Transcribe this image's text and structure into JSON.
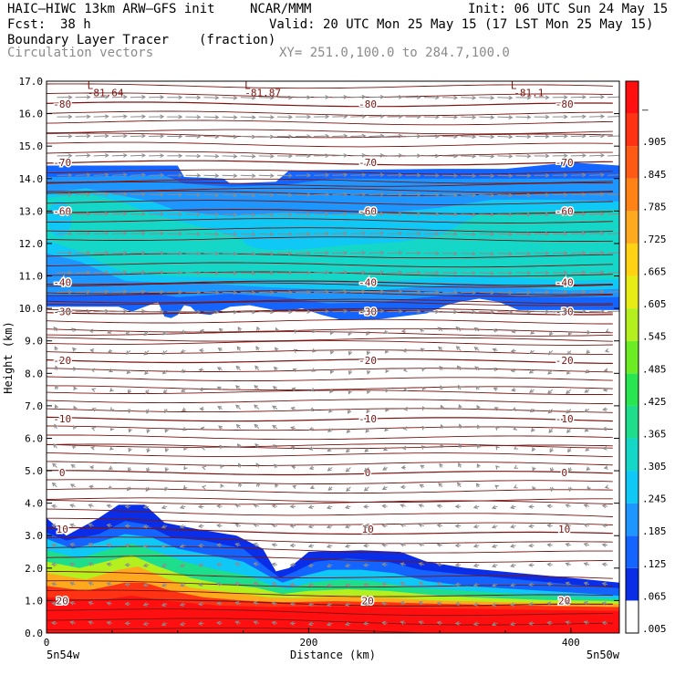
{
  "header": {
    "model": "HAIC–HIWC 13km ARW–GFS init",
    "org": "NCAR/MMM",
    "init": "Init: 06 UTC Sun 24 May 15",
    "fcst_label": "Fcst:",
    "fcst_value": "38 h",
    "valid": "Valid: 20 UTC Mon 25 May 15 (17 LST Mon 25 May 15)",
    "field": "Boundary Layer Tracer",
    "unit": "(fraction)",
    "vectors": "Circulation vectors",
    "xy": "XY= 251.0,100.0 to 284.7,100.0"
  },
  "colors": {
    "contour": "#7a1410",
    "vector": "#8c8c8c",
    "axis": "#000000"
  },
  "chart_data": {
    "type": "heatmap",
    "title": "Boundary Layer Tracer",
    "unit": "(fraction)",
    "xlabel": "Distance (km)",
    "ylabel": "Height (km)",
    "xlim": [
      0,
      437
    ],
    "ylim": [
      0,
      17
    ],
    "x_ticks": [
      0,
      200,
      400
    ],
    "y_ticks": [
      "0.0",
      "1.0",
      "2.0",
      "3.0",
      "4.0",
      "5.0",
      "6.0",
      "7.0",
      "8.0",
      "9.0",
      "10.0",
      "11.0",
      "12.0",
      "13.0",
      "14.0",
      "15.0",
      "16.0",
      "17.0"
    ],
    "x_end_labels": [
      "5n54w",
      "5n50w"
    ],
    "colorbar": {
      "labels": [
        ".005",
        ".065",
        ".125",
        ".185",
        ".245",
        ".305",
        ".365",
        ".425",
        ".485",
        ".545",
        ".605",
        ".665",
        ".725",
        ".785",
        ".845",
        ".905",
        "–"
      ],
      "colors": [
        "#ffffff",
        "#0a2ee8",
        "#1464ff",
        "#1e96ff",
        "#0fc8f5",
        "#14d7c8",
        "#1ede8c",
        "#28e650",
        "#6cec22",
        "#b4f01e",
        "#e6ec14",
        "#ffd214",
        "#ffaa1e",
        "#ff8214",
        "#ff5a14",
        "#ff3214",
        "#ff0f0f"
      ]
    },
    "temperature_contours": [
      {
        "temp": 20,
        "label": "20",
        "z": 1.0
      },
      {
        "temp": 10,
        "label": "10",
        "z": 3.2
      },
      {
        "temp": 0,
        "label": "0",
        "z": 4.95
      },
      {
        "temp": -10,
        "label": "-10",
        "z": 6.6
      },
      {
        "temp": -20,
        "label": "-20",
        "z": 8.4
      },
      {
        "temp": -30,
        "label": "-30",
        "z": 9.9
      },
      {
        "temp": -40,
        "label": "-40",
        "z": 10.8
      },
      {
        "temp": -60,
        "label": "-60",
        "z": 13.0
      },
      {
        "temp": -70,
        "label": "-70",
        "z": 14.5
      },
      {
        "temp": -80,
        "label": "-80",
        "z": 16.3
      }
    ],
    "minima": [
      {
        "x": 45,
        "z": 16.7,
        "label": "-81.64"
      },
      {
        "x": 165,
        "z": 16.7,
        "label": "-81.87"
      },
      {
        "x": 368,
        "z": 16.7,
        "label": "-81.1"
      }
    ],
    "tracer_layers": [
      {
        "level": 0.005,
        "top": [
          [
            0,
            3.55
          ],
          [
            15,
            3.0
          ],
          [
            40,
            3.55
          ],
          [
            55,
            3.95
          ],
          [
            75,
            3.95
          ],
          [
            90,
            3.4
          ],
          [
            115,
            3.2
          ],
          [
            145,
            3.0
          ],
          [
            165,
            2.6
          ],
          [
            175,
            1.9
          ],
          [
            185,
            2.0
          ],
          [
            200,
            2.5
          ],
          [
            240,
            2.55
          ],
          [
            270,
            2.5
          ],
          [
            290,
            2.2
          ],
          [
            320,
            2.0
          ],
          [
            360,
            1.85
          ],
          [
            400,
            1.7
          ],
          [
            437,
            1.55
          ]
        ]
      },
      {
        "level": 0.065,
        "top": [
          [
            0,
            3.1
          ],
          [
            15,
            2.85
          ],
          [
            40,
            3.05
          ],
          [
            60,
            3.45
          ],
          [
            75,
            3.35
          ],
          [
            95,
            2.95
          ],
          [
            120,
            2.85
          ],
          [
            150,
            2.6
          ],
          [
            168,
            2.0
          ],
          [
            178,
            1.7
          ],
          [
            190,
            1.9
          ],
          [
            205,
            2.2
          ],
          [
            230,
            2.3
          ],
          [
            260,
            2.2
          ],
          [
            285,
            1.95
          ],
          [
            320,
            1.8
          ],
          [
            360,
            1.65
          ],
          [
            400,
            1.5
          ],
          [
            437,
            1.38
          ]
        ]
      },
      {
        "level": 0.185,
        "top": [
          [
            0,
            2.9
          ],
          [
            20,
            2.6
          ],
          [
            40,
            2.8
          ],
          [
            60,
            3.05
          ],
          [
            80,
            2.95
          ],
          [
            100,
            2.6
          ],
          [
            125,
            2.4
          ],
          [
            150,
            2.2
          ],
          [
            170,
            1.75
          ],
          [
            180,
            1.55
          ],
          [
            195,
            1.75
          ],
          [
            215,
            1.95
          ],
          [
            240,
            1.95
          ],
          [
            265,
            1.85
          ],
          [
            290,
            1.6
          ],
          [
            320,
            1.45
          ],
          [
            360,
            1.35
          ],
          [
            400,
            1.25
          ],
          [
            437,
            1.15
          ]
        ]
      },
      {
        "level": 0.305,
        "top": [
          [
            0,
            2.55
          ],
          [
            25,
            2.3
          ],
          [
            45,
            2.55
          ],
          [
            65,
            2.75
          ],
          [
            85,
            2.5
          ],
          [
            105,
            2.2
          ],
          [
            130,
            1.95
          ],
          [
            155,
            1.75
          ],
          [
            172,
            1.45
          ],
          [
            185,
            1.35
          ],
          [
            200,
            1.55
          ],
          [
            225,
            1.65
          ],
          [
            250,
            1.6
          ],
          [
            280,
            1.4
          ],
          [
            320,
            1.3
          ],
          [
            360,
            1.2
          ],
          [
            400,
            1.12
          ],
          [
            437,
            1.05
          ]
        ]
      },
      {
        "level": 0.485,
        "top": [
          [
            0,
            2.2
          ],
          [
            25,
            2.0
          ],
          [
            50,
            2.25
          ],
          [
            65,
            2.4
          ],
          [
            85,
            2.05
          ],
          [
            110,
            1.7
          ],
          [
            135,
            1.5
          ],
          [
            160,
            1.4
          ],
          [
            180,
            1.2
          ],
          [
            200,
            1.3
          ],
          [
            230,
            1.35
          ],
          [
            260,
            1.3
          ],
          [
            300,
            1.15
          ],
          [
            340,
            1.08
          ],
          [
            380,
            1.02
          ],
          [
            437,
            0.98
          ]
        ]
      },
      {
        "level": 0.665,
        "top": [
          [
            0,
            1.85
          ],
          [
            30,
            1.65
          ],
          [
            55,
            1.95
          ],
          [
            70,
            2.05
          ],
          [
            90,
            1.7
          ],
          [
            110,
            1.4
          ],
          [
            140,
            1.25
          ],
          [
            170,
            1.1
          ],
          [
            190,
            1.08
          ],
          [
            220,
            1.12
          ],
          [
            260,
            1.08
          ],
          [
            300,
            1.0
          ],
          [
            350,
            0.95
          ],
          [
            437,
            0.9
          ]
        ]
      },
      {
        "level": 0.845,
        "top": [
          [
            0,
            1.45
          ],
          [
            30,
            1.3
          ],
          [
            60,
            1.55
          ],
          [
            75,
            1.55
          ],
          [
            95,
            1.3
          ],
          [
            120,
            1.1
          ],
          [
            150,
            1.0
          ],
          [
            180,
            0.95
          ],
          [
            220,
            0.98
          ],
          [
            260,
            0.95
          ],
          [
            300,
            0.9
          ],
          [
            360,
            0.85
          ],
          [
            437,
            0.8
          ]
        ]
      },
      {
        "level": 0.905,
        "top": [
          [
            0,
            1.1
          ],
          [
            40,
            1.0
          ],
          [
            65,
            1.15
          ],
          [
            90,
            1.0
          ],
          [
            130,
            0.85
          ],
          [
            170,
            0.8
          ],
          [
            220,
            0.82
          ],
          [
            280,
            0.78
          ],
          [
            360,
            0.72
          ],
          [
            437,
            0.68
          ]
        ]
      }
    ],
    "upper_cloud": {
      "outer": {
        "top": [
          [
            0,
            14.4
          ],
          [
            100,
            14.4
          ],
          [
            105,
            14.05
          ],
          [
            135,
            14.0
          ],
          [
            140,
            13.85
          ],
          [
            175,
            13.9
          ],
          [
            185,
            14.25
          ],
          [
            300,
            14.3
          ],
          [
            350,
            14.3
          ],
          [
            400,
            14.5
          ],
          [
            437,
            14.4
          ]
        ],
        "bottom": [
          [
            0,
            10.05
          ],
          [
            55,
            10.05
          ],
          [
            65,
            9.9
          ],
          [
            75,
            10.05
          ],
          [
            85,
            10.2
          ],
          [
            90,
            9.75
          ],
          [
            95,
            9.7
          ],
          [
            100,
            9.8
          ],
          [
            105,
            10.1
          ],
          [
            110,
            10.05
          ],
          [
            115,
            9.85
          ],
          [
            125,
            9.8
          ],
          [
            140,
            10.05
          ],
          [
            155,
            10.1
          ],
          [
            180,
            9.9
          ],
          [
            195,
            10.0
          ],
          [
            210,
            9.8
          ],
          [
            225,
            9.65
          ],
          [
            250,
            9.65
          ],
          [
            270,
            9.75
          ],
          [
            290,
            9.85
          ],
          [
            305,
            10.1
          ],
          [
            315,
            10.2
          ],
          [
            330,
            10.3
          ],
          [
            345,
            10.2
          ],
          [
            360,
            9.95
          ],
          [
            400,
            9.95
          ],
          [
            437,
            9.95
          ]
        ]
      },
      "mid": {
        "top": [
          [
            0,
            14.05
          ],
          [
            90,
            14.1
          ],
          [
            105,
            13.85
          ],
          [
            140,
            13.75
          ],
          [
            180,
            13.8
          ],
          [
            220,
            14.0
          ],
          [
            437,
            14.0
          ]
        ],
        "bottom": [
          [
            0,
            10.4
          ],
          [
            60,
            10.4
          ],
          [
            75,
            10.5
          ],
          [
            100,
            10.35
          ],
          [
            140,
            10.45
          ],
          [
            180,
            10.35
          ],
          [
            215,
            10.15
          ],
          [
            255,
            10.2
          ],
          [
            290,
            10.35
          ],
          [
            330,
            10.5
          ],
          [
            370,
            10.35
          ],
          [
            437,
            10.35
          ]
        ]
      },
      "inner": {
        "top": [
          [
            0,
            13.55
          ],
          [
            30,
            13.7
          ],
          [
            60,
            13.45
          ],
          [
            80,
            13.3
          ],
          [
            100,
            13.0
          ],
          [
            140,
            12.85
          ],
          [
            180,
            12.95
          ],
          [
            220,
            12.9
          ],
          [
            260,
            12.95
          ],
          [
            300,
            13.1
          ],
          [
            340,
            13.35
          ],
          [
            380,
            13.35
          ],
          [
            437,
            13.3
          ]
        ],
        "bottom": [
          [
            0,
            11.7
          ],
          [
            25,
            11.45
          ],
          [
            45,
            11.1
          ],
          [
            60,
            10.85
          ],
          [
            90,
            10.8
          ],
          [
            130,
            10.75
          ],
          [
            170,
            10.65
          ],
          [
            200,
            10.6
          ],
          [
            240,
            10.5
          ],
          [
            280,
            10.65
          ],
          [
            320,
            10.75
          ],
          [
            360,
            10.65
          ],
          [
            400,
            10.55
          ],
          [
            437,
            10.6
          ]
        ]
      },
      "core": {
        "top": [
          [
            0,
            13.4
          ],
          [
            30,
            13.55
          ],
          [
            60,
            13.25
          ],
          [
            80,
            12.9
          ],
          [
            110,
            12.6
          ],
          [
            150,
            12.15
          ],
          [
            190,
            11.8
          ],
          [
            230,
            11.95
          ],
          [
            270,
            12.05
          ],
          [
            300,
            12.25
          ],
          [
            330,
            12.9
          ],
          [
            370,
            13.0
          ],
          [
            437,
            13.05
          ]
        ],
        "bottom": [
          [
            0,
            12.1
          ],
          [
            25,
            11.75
          ],
          [
            45,
            11.35
          ],
          [
            60,
            11.1
          ],
          [
            90,
            11.0
          ],
          [
            130,
            10.95
          ],
          [
            170,
            10.9
          ],
          [
            200,
            10.85
          ],
          [
            240,
            10.8
          ],
          [
            280,
            10.9
          ],
          [
            320,
            11.0
          ],
          [
            360,
            10.95
          ],
          [
            400,
            10.85
          ],
          [
            437,
            10.9
          ]
        ]
      },
      "pockets": [
        {
          "x": 10,
          "z": 12.75,
          "rx": 9,
          "rz": 0.55,
          "level": 0.185
        },
        {
          "x": 215,
          "z": 11.1,
          "rx": 45,
          "rz": 0.28,
          "level": 0.245
        },
        {
          "x": 175,
          "z": 12.1,
          "rx": 25,
          "rz": 0.3,
          "level": 0.185
        }
      ]
    }
  }
}
